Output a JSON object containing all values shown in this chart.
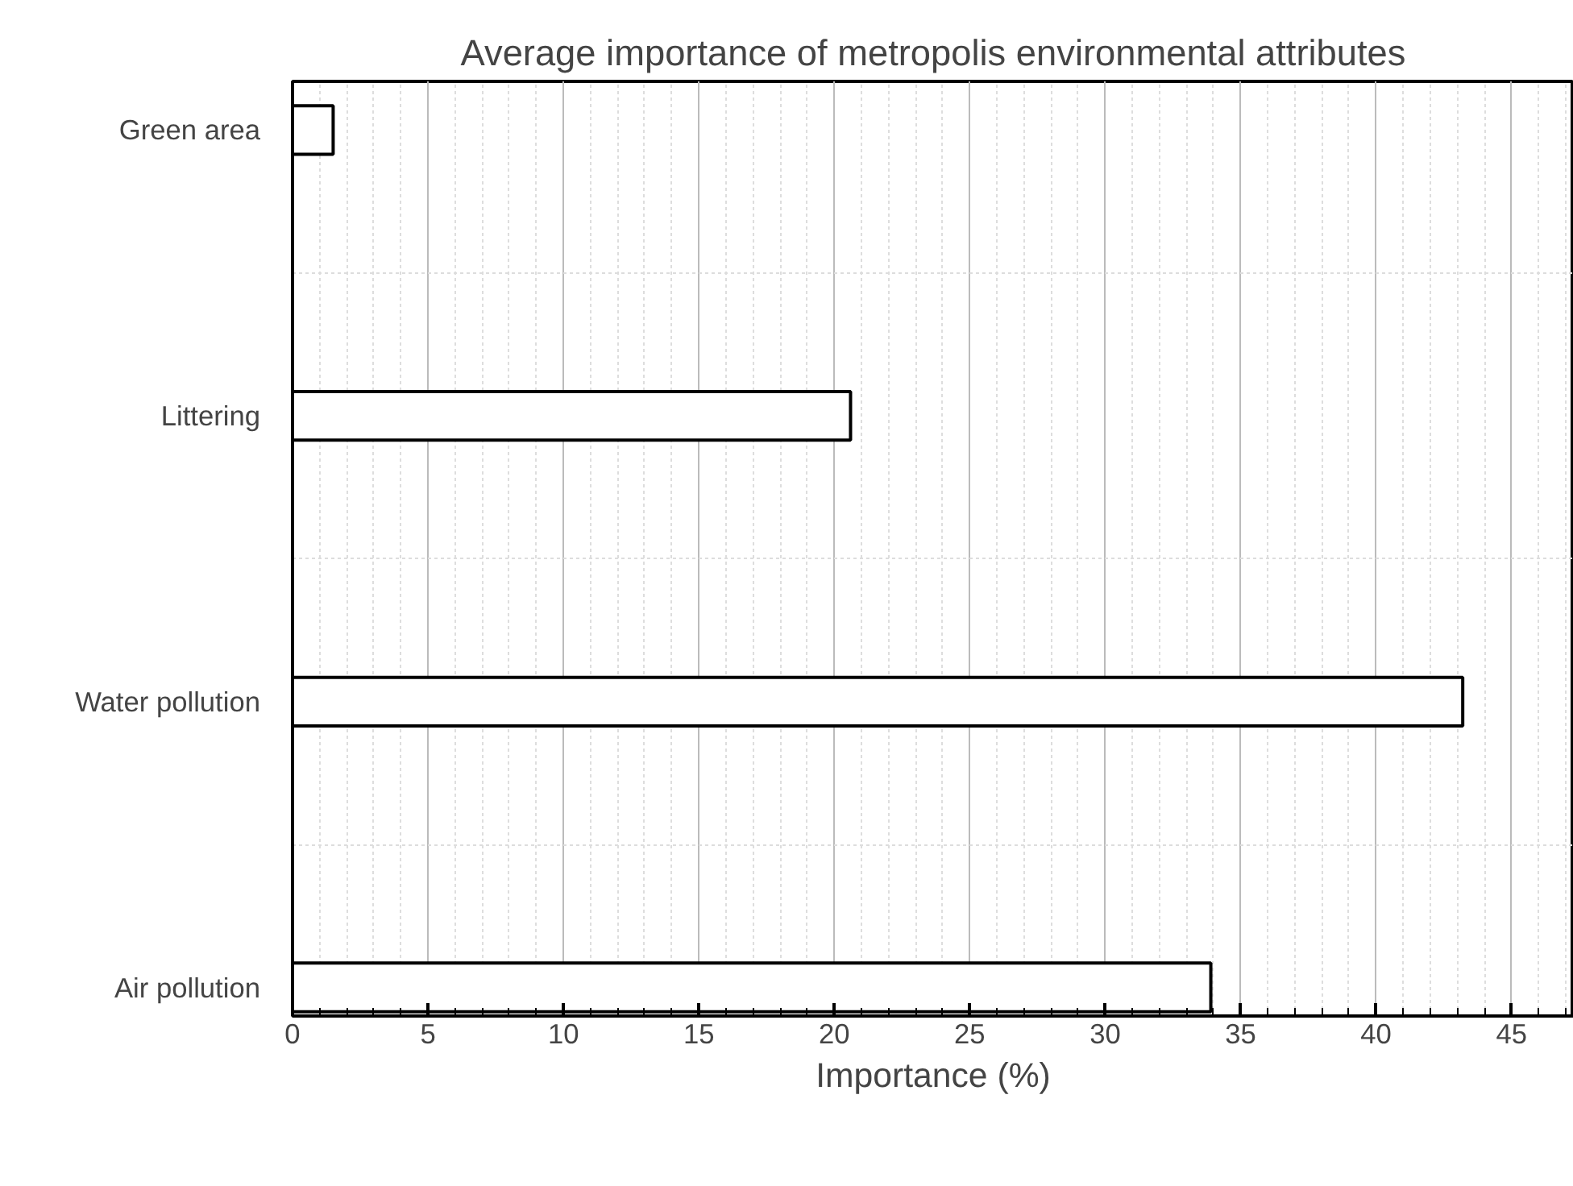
{
  "chart_data": {
    "type": "bar",
    "orientation": "horizontal",
    "title": "Average importance of metropolis environmental attributes",
    "xlabel": "Importance (%)",
    "categories": [
      "Green area",
      "Littering",
      "Water pollution",
      "Air pollution"
    ],
    "values": [
      1.5,
      20.6,
      43.2,
      33.9
    ],
    "color": "#ffffff",
    "xlim": [
      0,
      47.3
    ],
    "xticks": [
      0,
      5,
      10,
      15,
      20,
      25,
      30,
      35,
      40,
      45
    ],
    "grid": true
  }
}
